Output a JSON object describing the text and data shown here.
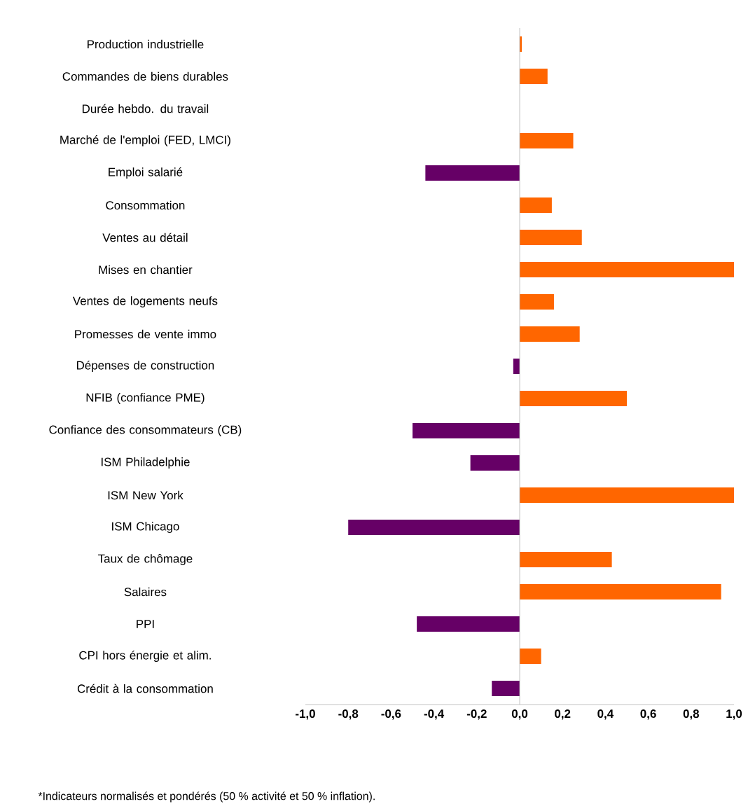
{
  "chart_data": {
    "type": "bar",
    "orientation": "horizontal",
    "categories": [
      "Production industrielle",
      "Commandes de biens durables",
      "Durée hebdo. du travail",
      "Marché de l'emploi (FED, LMCI)",
      "Emploi salarié",
      "Consommation",
      "Ventes au détail",
      "Mises en chantier",
      "Ventes de logements neufs",
      "Promesses de vente immo",
      "Dépenses de construction",
      "NFIB (confiance PME)",
      "Confiance des consommateurs (CB)",
      "ISM Philadelphie",
      "ISM New York",
      "ISM Chicago",
      "Taux de chômage",
      "Salaires",
      "PPI",
      "CPI hors énergie et alim.",
      "Crédit à la consommation"
    ],
    "values": [
      0.01,
      0.13,
      0,
      0.25,
      -0.44,
      0.15,
      0.29,
      1.0,
      0.16,
      0.28,
      -0.03,
      0.5,
      -0.5,
      -0.23,
      1.0,
      -0.8,
      0.43,
      0.94,
      -0.48,
      0.1,
      -0.13
    ],
    "colors": [
      "#ff6600",
      "#ff6600",
      "#ff6600",
      "#ff6600",
      "#660066",
      "#ff6600",
      "#ff6600",
      "#ff6600",
      "#ff6600",
      "#ff6600",
      "#660066",
      "#ff6600",
      "#660066",
      "#660066",
      "#ff6600",
      "#660066",
      "#ff6600",
      "#ff6600",
      "#660066",
      "#ff6600",
      "#660066"
    ],
    "xlim": [
      -1,
      1
    ],
    "xticks": [
      {
        "value": -1,
        "label": "-1,0"
      },
      {
        "value": -0.8,
        "label": "-0,8"
      },
      {
        "value": -0.6,
        "label": "-0,6"
      },
      {
        "value": -0.4,
        "label": "-0,4"
      },
      {
        "value": -0.2,
        "label": "-0,2"
      },
      {
        "value": 0,
        "label": "0,0"
      },
      {
        "value": 0.2,
        "label": "0,2"
      },
      {
        "value": 0.4,
        "label": "0,4"
      },
      {
        "value": 0.6,
        "label": "0,6"
      },
      {
        "value": 0.8,
        "label": "0,8"
      },
      {
        "value": 1,
        "label": "1,0"
      }
    ],
    "annotations": [
      "*Indicateurs normalisés et pondérés (50 % activité et 50 % inflation)."
    ]
  }
}
